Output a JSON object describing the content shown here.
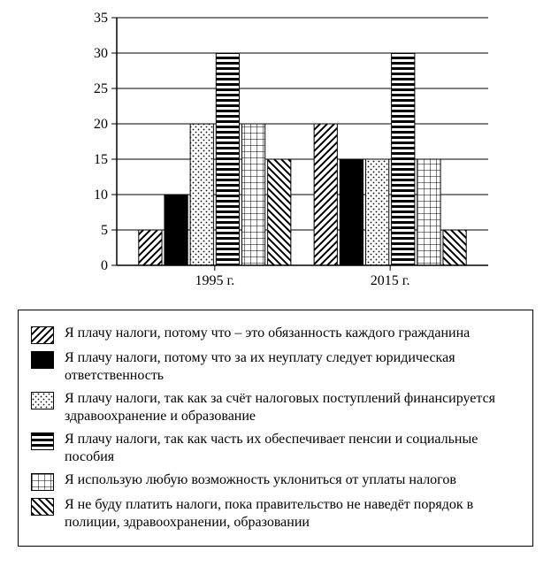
{
  "chart": {
    "type": "grouped-bar",
    "ylim": [
      0,
      35
    ],
    "ytick_step": 5,
    "yticks": [
      0,
      5,
      10,
      15,
      20,
      25,
      30,
      35
    ],
    "background_color": "#ffffff",
    "axis_color": "#000000",
    "grid_color": "#000000",
    "axis_fontsize": 16,
    "bar_border_color": "#000000",
    "group_gap": 0.8,
    "bar_width": 0.9,
    "groups": [
      {
        "label": "1995 г.",
        "values": [
          5,
          10,
          20,
          30,
          20,
          15
        ]
      },
      {
        "label": "2015 г.",
        "values": [
          20,
          15,
          15,
          30,
          15,
          5
        ]
      }
    ],
    "series_patterns": [
      "diag",
      "solid",
      "dots",
      "hstripes",
      "grid",
      "bslash"
    ]
  },
  "legend": {
    "items": [
      {
        "pattern": "diag",
        "text": "Я плачу налоги, потому что – это обязанность каждого гражданина"
      },
      {
        "pattern": "solid",
        "text": "Я плачу налоги, потому что за их неуплату следует юридическая ответственность"
      },
      {
        "pattern": "dots",
        "text": "Я плачу налоги, так как за счёт налоговых поступлений финансируется здравоохранение и образование"
      },
      {
        "pattern": "hstripes",
        "text": "Я плачу налоги, так как часть их обеспечивает пенсии и социальные пособия"
      },
      {
        "pattern": "grid",
        "text": "Я использую любую возможность уклониться от уплаты налогов"
      },
      {
        "pattern": "bslash",
        "text": "Я не буду платить налоги, пока правительство не наведёт порядок в полиции, здравоохранении, образовании"
      }
    ]
  }
}
